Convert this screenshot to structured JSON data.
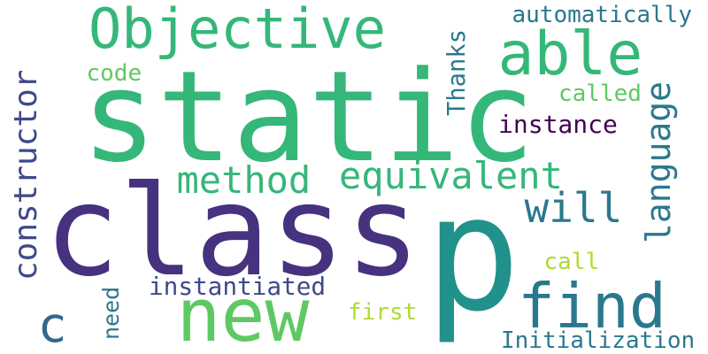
{
  "words": [
    {
      "id": "static",
      "text": "static",
      "color": "#35b779",
      "rotate": false
    },
    {
      "id": "class",
      "text": "class",
      "color": "#46327e",
      "rotate": false
    },
    {
      "id": "p",
      "text": "p",
      "color": "#21918c",
      "rotate": false
    },
    {
      "id": "objective",
      "text": "Objective",
      "color": "#35b779",
      "rotate": false
    },
    {
      "id": "new",
      "text": "new",
      "color": "#5ec962",
      "rotate": false
    },
    {
      "id": "find",
      "text": "find",
      "color": "#2a788e",
      "rotate": false
    },
    {
      "id": "able",
      "text": "able",
      "color": "#35b779",
      "rotate": false
    },
    {
      "id": "constructor",
      "text": "constructor",
      "color": "#3e4989",
      "rotate": true
    },
    {
      "id": "equivalent",
      "text": "equivalent",
      "color": "#35b779",
      "rotate": false
    },
    {
      "id": "method",
      "text": "method",
      "color": "#35b779",
      "rotate": false
    },
    {
      "id": "c",
      "text": "c",
      "color": "#31688e",
      "rotate": false
    },
    {
      "id": "language",
      "text": "language",
      "color": "#2a788e",
      "rotate": true
    },
    {
      "id": "will",
      "text": "will",
      "color": "#2a788e",
      "rotate": false
    },
    {
      "id": "instantiated",
      "text": "instantiated",
      "color": "#3e4989",
      "rotate": false
    },
    {
      "id": "automatically",
      "text": "automatically",
      "color": "#2a788e",
      "rotate": false
    },
    {
      "id": "initialization",
      "text": "Initialization",
      "color": "#2a788e",
      "rotate": false
    },
    {
      "id": "instance",
      "text": "instance",
      "color": "#440154",
      "rotate": false
    },
    {
      "id": "thanks",
      "text": "Thanks",
      "color": "#2a788e",
      "rotate": true
    },
    {
      "id": "called",
      "text": "called",
      "color": "#5ec962",
      "rotate": false
    },
    {
      "id": "code",
      "text": "code",
      "color": "#5ec962",
      "rotate": false
    },
    {
      "id": "first",
      "text": "first",
      "color": "#addc30",
      "rotate": false
    },
    {
      "id": "call",
      "text": "call",
      "color": "#addc30",
      "rotate": false
    },
    {
      "id": "need",
      "text": "need",
      "color": "#2a788e",
      "rotate": true
    }
  ]
}
